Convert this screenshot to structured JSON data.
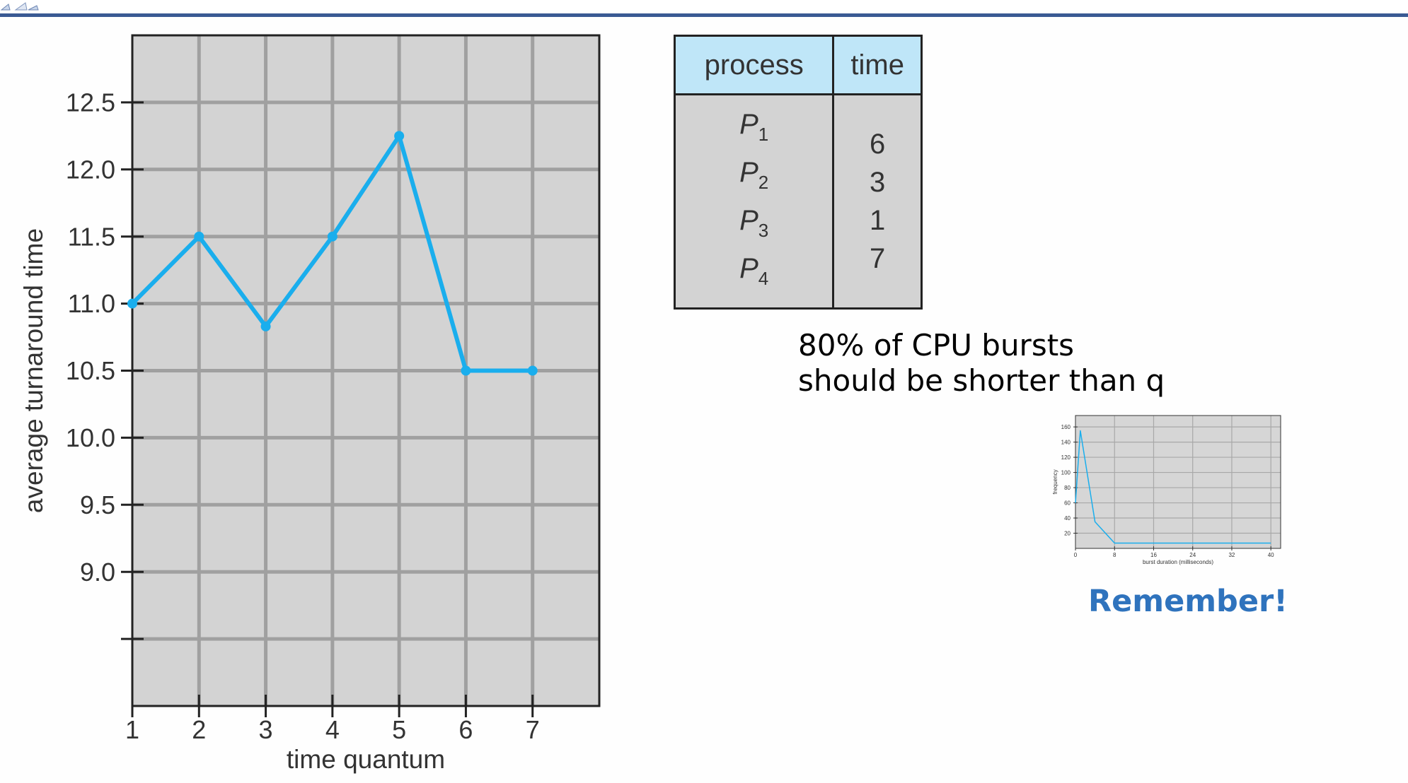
{
  "chart_data": [
    {
      "type": "line",
      "title": "",
      "xlabel": "time quantum",
      "ylabel": "average turnaround time",
      "x": [
        1,
        2,
        3,
        4,
        5,
        6,
        7
      ],
      "series": [
        {
          "values": [
            11.0,
            11.5,
            10.83,
            11.5,
            12.25,
            10.5,
            10.5
          ]
        }
      ],
      "xticks": [
        "1",
        "2",
        "3",
        "4",
        "5",
        "6",
        "7"
      ],
      "yticks": [
        "12.5",
        "12.0",
        "11.5",
        "11.0",
        "10.5",
        "10.0",
        "9.5",
        "9.0"
      ],
      "xlim": [
        1,
        8
      ],
      "ylim": [
        8.0,
        13.0
      ],
      "grid": true,
      "colors": {
        "line": "#1aaeed",
        "plot_bg": "#d3d3d3",
        "grid": "#a0a0a0"
      }
    },
    {
      "type": "line",
      "title": "",
      "xlabel": "burst duration (milliseconds)",
      "ylabel": "frequency",
      "x": [
        0,
        1,
        4,
        8,
        40
      ],
      "series": [
        {
          "values": [
            60,
            155,
            35,
            7,
            7
          ]
        }
      ],
      "xticks": [
        "0",
        "8",
        "16",
        "24",
        "32",
        "40"
      ],
      "yticks": [
        "160",
        "140",
        "120",
        "100",
        "80",
        "60",
        "40",
        "20"
      ],
      "xlim": [
        0,
        42
      ],
      "ylim": [
        0,
        175
      ],
      "grid": true,
      "colors": {
        "line": "#1aaeed",
        "plot_bg": "#d6d6d6",
        "grid": "#a8a8a8"
      }
    }
  ],
  "table": {
    "headers": [
      "process",
      "time"
    ],
    "rows": [
      {
        "process": "P",
        "sub": "1",
        "time": "6"
      },
      {
        "process": "P",
        "sub": "2",
        "time": "3"
      },
      {
        "process": "P",
        "sub": "3",
        "time": "1"
      },
      {
        "process": "P",
        "sub": "4",
        "time": "7"
      }
    ]
  },
  "note": {
    "line1": "80% of CPU bursts",
    "line2": "should be shorter than q"
  },
  "remember": "Remember!"
}
